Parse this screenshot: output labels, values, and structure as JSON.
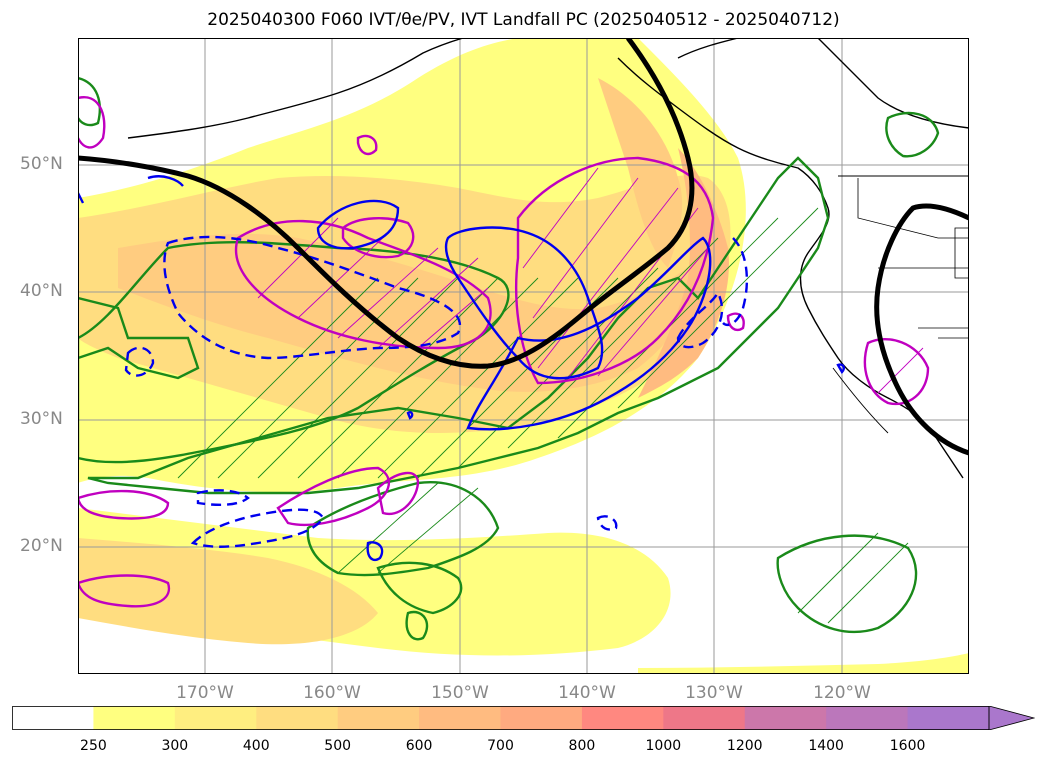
{
  "title": "2025040300 F060 IVT/θe/PV, IVT Landfall PC (2025040512 - 2025040712)",
  "map": {
    "lat_labels": [
      {
        "label": "50°N",
        "lat": 50
      },
      {
        "label": "40°N",
        "lat": 40
      },
      {
        "label": "30°N",
        "lat": 30
      },
      {
        "label": "20°N",
        "lat": 20
      }
    ],
    "lon_labels": [
      {
        "label": "170°W",
        "lon": -170
      },
      {
        "label": "160°W",
        "lon": -160
      },
      {
        "label": "150°W",
        "lon": -150
      },
      {
        "label": "140°W",
        "lon": -140
      },
      {
        "label": "130°W",
        "lon": -130
      },
      {
        "label": "120°W",
        "lon": -120
      }
    ],
    "extent": {
      "lon_min": -180,
      "lon_max": -110,
      "lat_min": 10,
      "lat_max": 60
    }
  },
  "colorbar": {
    "levels": [
      "250",
      "300",
      "400",
      "500",
      "600",
      "700",
      "800",
      "1000",
      "1200",
      "1400",
      "1600"
    ],
    "colors": [
      "#ffffff",
      "#ffff80",
      "#ffee80",
      "#ffdd80",
      "#ffcc80",
      "#ffbb80",
      "#ffaa80",
      "#ff8880",
      "#ee7788",
      "#cc77aa",
      "#bb77bb",
      "#aa77cc"
    ],
    "extend": "max"
  }
}
